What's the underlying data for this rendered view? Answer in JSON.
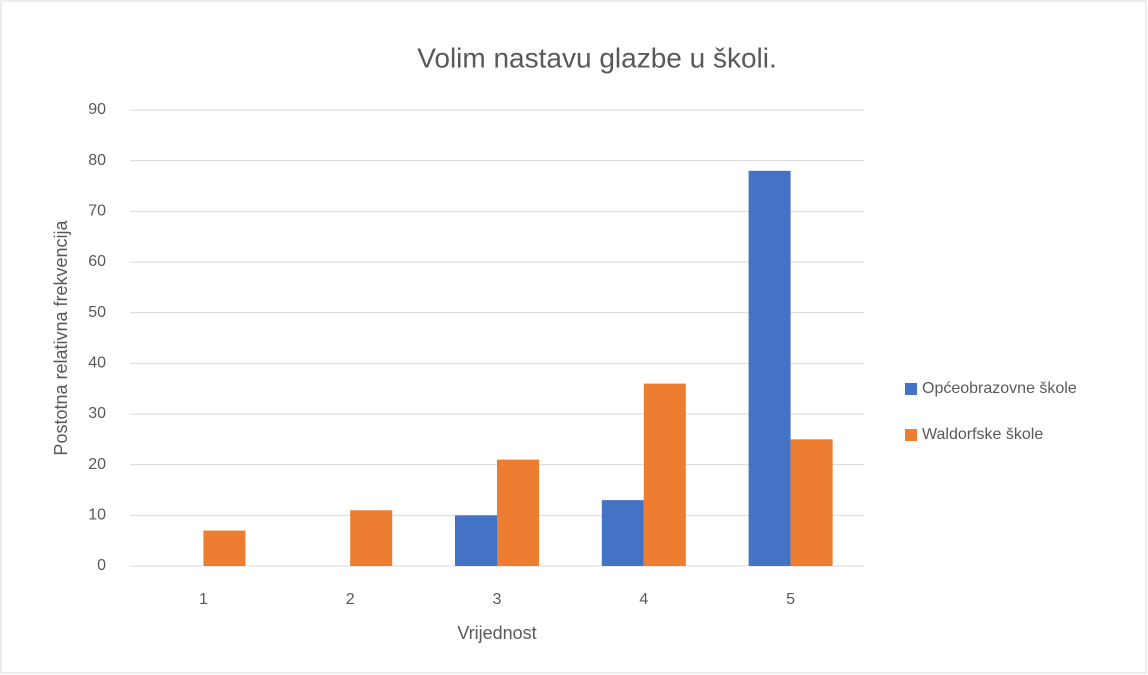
{
  "chart_data": {
    "type": "bar",
    "title": "Volim nastavu glazbe u školi.",
    "x_label": "Vrijednost",
    "y_label": "Postotna relativna frekvencija",
    "categories": [
      "1",
      "2",
      "3",
      "4",
      "5"
    ],
    "series": [
      {
        "name": "Općeobrazovne škole",
        "color": "#4472c4",
        "values": [
          0,
          0,
          10,
          13,
          78
        ]
      },
      {
        "name": "Waldorfske škole",
        "color": "#ed7d31",
        "values": [
          7,
          11,
          21,
          36,
          25
        ]
      }
    ],
    "ylim": [
      0,
      90
    ],
    "yticks": [
      0,
      10,
      20,
      30,
      40,
      50,
      60,
      70,
      80,
      90
    ],
    "grid": true,
    "legend": "right"
  }
}
